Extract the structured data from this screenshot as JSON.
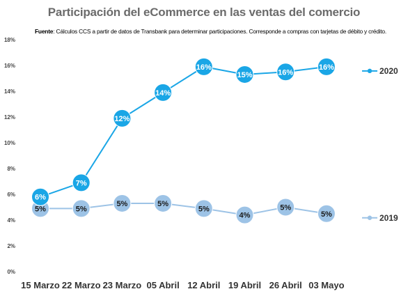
{
  "title": "Participación del eCommerce en las ventas del comercio",
  "source": {
    "label": "Fuente",
    "text": ": Cálculos CCS a partir de datos de Transbank para determinar participaciones. Corresponde a compras con tarjetas de débito y crédito."
  },
  "chart_data": {
    "type": "line",
    "title": "Participación del eCommerce en las ventas del comercio",
    "categories": [
      "15 Marzo",
      "22 Marzo",
      "23 Marzo",
      "05 Abril",
      "12 Abril",
      "19 Abril",
      "26 Abril",
      "03 Mayo"
    ],
    "ylim": [
      0,
      18
    ],
    "yticks": [
      0,
      2,
      4,
      6,
      8,
      10,
      12,
      14,
      16,
      18
    ],
    "ytick_labels": [
      "0%",
      "2%",
      "4%",
      "6%",
      "8%",
      "10%",
      "12%",
      "14%",
      "16%",
      "18%"
    ],
    "grid": false,
    "legend_position": "right",
    "series": [
      {
        "name": "2020",
        "color": "#1aa6e6",
        "values": [
          5.8,
          6.9,
          11.9,
          13.9,
          15.9,
          15.3,
          15.5,
          15.9
        ],
        "labels": [
          "6%",
          "7%",
          "12%",
          "14%",
          "16%",
          "15%",
          "16%",
          "16%"
        ],
        "label_color": "#ffffff"
      },
      {
        "name": "2019",
        "color": "#9dc3e6",
        "values": [
          4.9,
          4.9,
          5.3,
          5.3,
          4.9,
          4.4,
          5.0,
          4.5
        ],
        "labels": [
          "5%",
          "5%",
          "5%",
          "5%",
          "5%",
          "4%",
          "5%",
          "5%"
        ],
        "label_color": "#1a1a1a"
      }
    ]
  }
}
